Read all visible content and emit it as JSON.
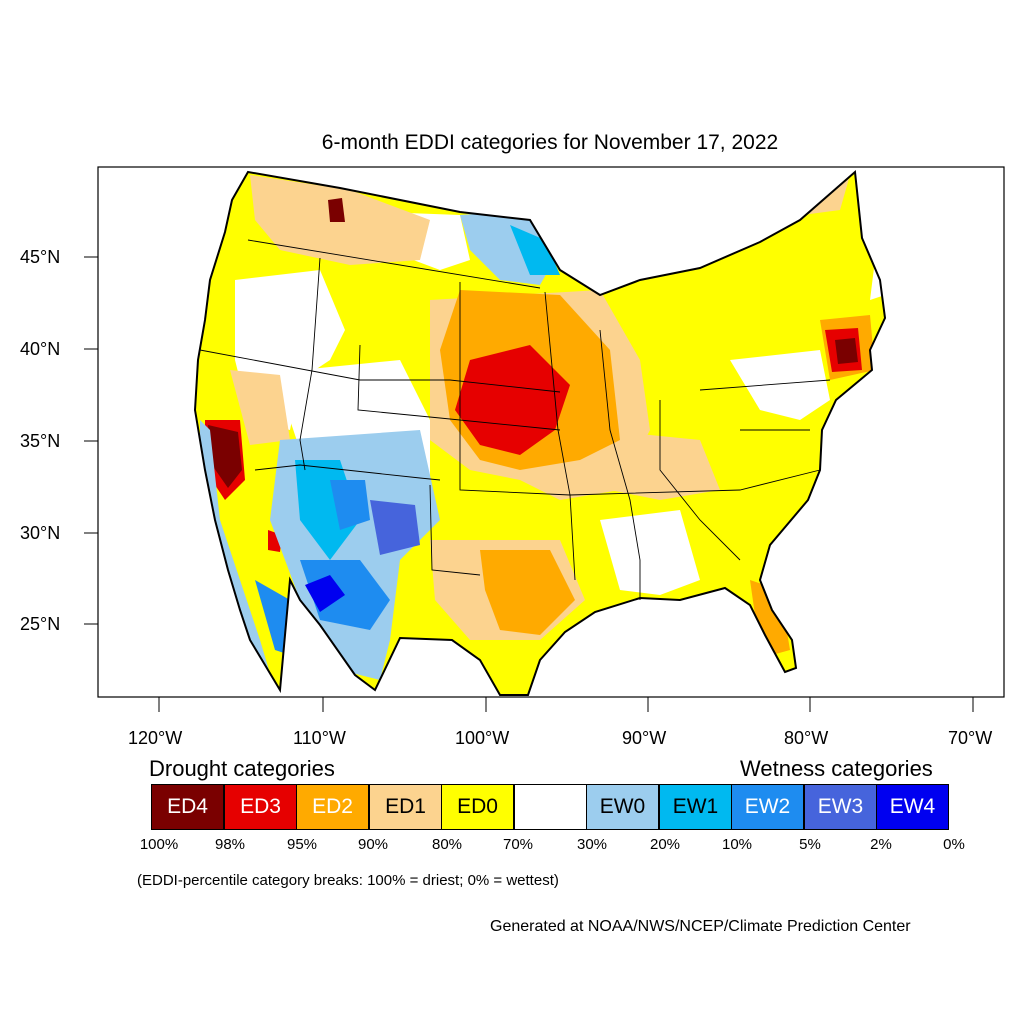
{
  "title": "6-month EDDI categories for November 17, 2022",
  "axes": {
    "lat_ticks": [
      "45°N",
      "40°N",
      "35°N",
      "30°N",
      "25°N"
    ],
    "lon_ticks": [
      "120°W",
      "110°W",
      "100°W",
      "90°W",
      "80°W",
      "70°W"
    ]
  },
  "legend": {
    "drought_heading": "Drought categories",
    "wetness_heading": "Wetness categories",
    "categories": [
      {
        "label": "ED4",
        "color": "#7a0000",
        "text_color": "#ffffff"
      },
      {
        "label": "ED3",
        "color": "#e60000",
        "text_color": "#ffffff"
      },
      {
        "label": "ED2",
        "color": "#ffaa00",
        "text_color": "#ffffff"
      },
      {
        "label": "ED1",
        "color": "#fcd38f",
        "text_color": "#000000"
      },
      {
        "label": "ED0",
        "color": "#ffff00",
        "text_color": "#000000"
      },
      {
        "label": "",
        "color": "#ffffff",
        "text_color": "#000000"
      },
      {
        "label": "EW0",
        "color": "#9ccdee",
        "text_color": "#000000"
      },
      {
        "label": "EW1",
        "color": "#00b9f0",
        "text_color": "#000000"
      },
      {
        "label": "EW2",
        "color": "#1e8cf0",
        "text_color": "#ffffff"
      },
      {
        "label": "EW3",
        "color": "#4664dc",
        "text_color": "#ffffff"
      },
      {
        "label": "EW4",
        "color": "#0000f0",
        "text_color": "#ffffff"
      }
    ],
    "percentiles": [
      "100%",
      "98%",
      "95%",
      "90%",
      "80%",
      "70%",
      "30%",
      "20%",
      "10%",
      "5%",
      "2%",
      "0%"
    ]
  },
  "note": "(EDDI-percentile category breaks: 100% = driest; 0% = wettest)",
  "credit": "Generated at NOAA/NWS/NCEP/Climate Prediction Center"
}
